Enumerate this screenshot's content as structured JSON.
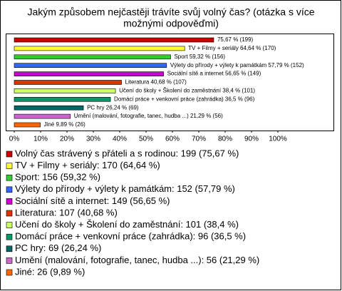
{
  "chart_data": {
    "type": "bar",
    "orientation": "horizontal",
    "title": [
      "Jakým způsobem nejčastěji trávíte svůj volný čas? (otázka s více",
      "možnými odpověďmi)"
    ],
    "values": [
      75.67,
      64.64,
      59.32,
      57.79,
      56.65,
      40.68,
      38.4,
      36.5,
      26.24,
      21.29,
      9.89
    ],
    "value_labels": [
      "75,67 % (199)",
      "TV + Filmy + seriály 64,64 % (170)",
      "Sport 59,32 % (156)",
      "Výlety do přírody + výlety k památkám 57,79 % (152)",
      "Sociální sítě a internet 56,65 % (149)",
      "Literatura 40,68 % (107)",
      "Učení do školy + Školení do zaměstnání 38,4 % (101)",
      "Domácí práce + venkovní práce (zahrádka) 36,5 % (96)",
      "PC hry 26,24 % (69)",
      "Umění (malování, fotografie, tanec, hudba ...) 21,29 % (56)",
      "Jiné 9,89 % (26)"
    ],
    "legend_labels": [
      "Volný čas strávený s přáteli a s rodinou: 199 (75,67 %)",
      "TV + Filmy + seriály: 170 (64,64 %)",
      "Sport: 156 (59,32 %)",
      "Výlety do přírody + výlety k památkám: 152 (57,79 %)",
      "Sociální sítě a internet: 149 (56,65 %)",
      "Literatura: 107 (40,68 %)",
      "Učení do školy + Školení do zaměstnání: 101 (38,4 %)",
      "Domácí práce + venkovní práce (zahrádka): 96 (36,5 %)",
      "PC hry: 69 (26,24 %)",
      "Umění (malování, fotografie, tanec, hudba ...): 56 (21,29 %)",
      "Jiné: 26 (9,89 %)"
    ],
    "colors": [
      "#cc0000",
      "#ffff33",
      "#33cc33",
      "#3366ff",
      "#cc00cc",
      "#dd3300",
      "#ccff66",
      "#009966",
      "#006666",
      "#cc66cc",
      "#ff6600"
    ],
    "xlim": [
      0,
      100
    ],
    "xticks": [
      {
        "value": 0,
        "label": "0%"
      },
      {
        "value": 10,
        "label": "10%"
      },
      {
        "value": 20,
        "label": "20%"
      },
      {
        "value": 30,
        "label": "30%"
      },
      {
        "value": 40,
        "label": "40%"
      },
      {
        "value": 50,
        "label": "50%"
      },
      {
        "value": 60,
        "label": "60%"
      },
      {
        "value": 70,
        "label": "70%"
      },
      {
        "value": 80,
        "label": "80%"
      },
      {
        "value": 90,
        "label": "90%"
      },
      {
        "value": 100,
        "label": "100%"
      }
    ]
  }
}
